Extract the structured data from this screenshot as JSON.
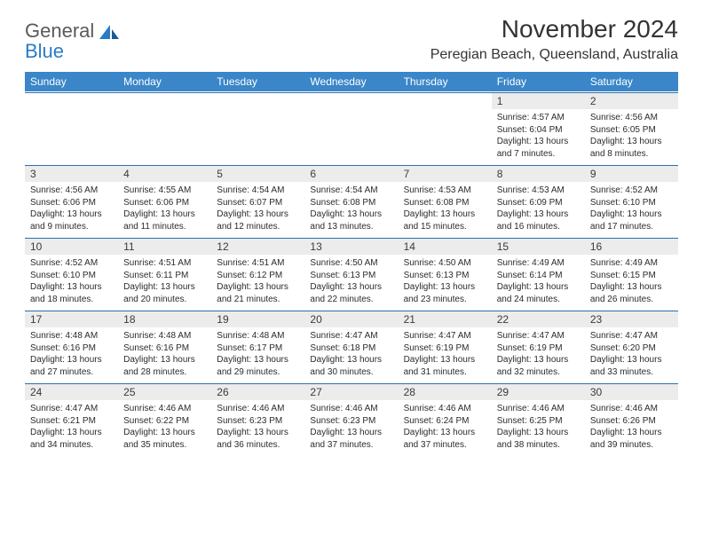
{
  "logo": {
    "word1": "General",
    "word2": "Blue"
  },
  "title": "November 2024",
  "location": "Peregian Beach, Queensland, Australia",
  "colors": {
    "header_bg": "#3a86c8",
    "header_text": "#ffffff",
    "rule": "#2f6faa",
    "daynum_bg": "#ececec",
    "body_text": "#2b2b2b",
    "logo_gray": "#5a5a5a",
    "logo_blue": "#2a7cc7"
  },
  "day_names": [
    "Sunday",
    "Monday",
    "Tuesday",
    "Wednesday",
    "Thursday",
    "Friday",
    "Saturday"
  ],
  "weeks": [
    [
      {
        "num": "",
        "lines": []
      },
      {
        "num": "",
        "lines": []
      },
      {
        "num": "",
        "lines": []
      },
      {
        "num": "",
        "lines": []
      },
      {
        "num": "",
        "lines": []
      },
      {
        "num": "1",
        "lines": [
          "Sunrise: 4:57 AM",
          "Sunset: 6:04 PM",
          "Daylight: 13 hours and 7 minutes."
        ]
      },
      {
        "num": "2",
        "lines": [
          "Sunrise: 4:56 AM",
          "Sunset: 6:05 PM",
          "Daylight: 13 hours and 8 minutes."
        ]
      }
    ],
    [
      {
        "num": "3",
        "lines": [
          "Sunrise: 4:56 AM",
          "Sunset: 6:06 PM",
          "Daylight: 13 hours and 9 minutes."
        ]
      },
      {
        "num": "4",
        "lines": [
          "Sunrise: 4:55 AM",
          "Sunset: 6:06 PM",
          "Daylight: 13 hours and 11 minutes."
        ]
      },
      {
        "num": "5",
        "lines": [
          "Sunrise: 4:54 AM",
          "Sunset: 6:07 PM",
          "Daylight: 13 hours and 12 minutes."
        ]
      },
      {
        "num": "6",
        "lines": [
          "Sunrise: 4:54 AM",
          "Sunset: 6:08 PM",
          "Daylight: 13 hours and 13 minutes."
        ]
      },
      {
        "num": "7",
        "lines": [
          "Sunrise: 4:53 AM",
          "Sunset: 6:08 PM",
          "Daylight: 13 hours and 15 minutes."
        ]
      },
      {
        "num": "8",
        "lines": [
          "Sunrise: 4:53 AM",
          "Sunset: 6:09 PM",
          "Daylight: 13 hours and 16 minutes."
        ]
      },
      {
        "num": "9",
        "lines": [
          "Sunrise: 4:52 AM",
          "Sunset: 6:10 PM",
          "Daylight: 13 hours and 17 minutes."
        ]
      }
    ],
    [
      {
        "num": "10",
        "lines": [
          "Sunrise: 4:52 AM",
          "Sunset: 6:10 PM",
          "Daylight: 13 hours and 18 minutes."
        ]
      },
      {
        "num": "11",
        "lines": [
          "Sunrise: 4:51 AM",
          "Sunset: 6:11 PM",
          "Daylight: 13 hours and 20 minutes."
        ]
      },
      {
        "num": "12",
        "lines": [
          "Sunrise: 4:51 AM",
          "Sunset: 6:12 PM",
          "Daylight: 13 hours and 21 minutes."
        ]
      },
      {
        "num": "13",
        "lines": [
          "Sunrise: 4:50 AM",
          "Sunset: 6:13 PM",
          "Daylight: 13 hours and 22 minutes."
        ]
      },
      {
        "num": "14",
        "lines": [
          "Sunrise: 4:50 AM",
          "Sunset: 6:13 PM",
          "Daylight: 13 hours and 23 minutes."
        ]
      },
      {
        "num": "15",
        "lines": [
          "Sunrise: 4:49 AM",
          "Sunset: 6:14 PM",
          "Daylight: 13 hours and 24 minutes."
        ]
      },
      {
        "num": "16",
        "lines": [
          "Sunrise: 4:49 AM",
          "Sunset: 6:15 PM",
          "Daylight: 13 hours and 26 minutes."
        ]
      }
    ],
    [
      {
        "num": "17",
        "lines": [
          "Sunrise: 4:48 AM",
          "Sunset: 6:16 PM",
          "Daylight: 13 hours and 27 minutes."
        ]
      },
      {
        "num": "18",
        "lines": [
          "Sunrise: 4:48 AM",
          "Sunset: 6:16 PM",
          "Daylight: 13 hours and 28 minutes."
        ]
      },
      {
        "num": "19",
        "lines": [
          "Sunrise: 4:48 AM",
          "Sunset: 6:17 PM",
          "Daylight: 13 hours and 29 minutes."
        ]
      },
      {
        "num": "20",
        "lines": [
          "Sunrise: 4:47 AM",
          "Sunset: 6:18 PM",
          "Daylight: 13 hours and 30 minutes."
        ]
      },
      {
        "num": "21",
        "lines": [
          "Sunrise: 4:47 AM",
          "Sunset: 6:19 PM",
          "Daylight: 13 hours and 31 minutes."
        ]
      },
      {
        "num": "22",
        "lines": [
          "Sunrise: 4:47 AM",
          "Sunset: 6:19 PM",
          "Daylight: 13 hours and 32 minutes."
        ]
      },
      {
        "num": "23",
        "lines": [
          "Sunrise: 4:47 AM",
          "Sunset: 6:20 PM",
          "Daylight: 13 hours and 33 minutes."
        ]
      }
    ],
    [
      {
        "num": "24",
        "lines": [
          "Sunrise: 4:47 AM",
          "Sunset: 6:21 PM",
          "Daylight: 13 hours and 34 minutes."
        ]
      },
      {
        "num": "25",
        "lines": [
          "Sunrise: 4:46 AM",
          "Sunset: 6:22 PM",
          "Daylight: 13 hours and 35 minutes."
        ]
      },
      {
        "num": "26",
        "lines": [
          "Sunrise: 4:46 AM",
          "Sunset: 6:23 PM",
          "Daylight: 13 hours and 36 minutes."
        ]
      },
      {
        "num": "27",
        "lines": [
          "Sunrise: 4:46 AM",
          "Sunset: 6:23 PM",
          "Daylight: 13 hours and 37 minutes."
        ]
      },
      {
        "num": "28",
        "lines": [
          "Sunrise: 4:46 AM",
          "Sunset: 6:24 PM",
          "Daylight: 13 hours and 37 minutes."
        ]
      },
      {
        "num": "29",
        "lines": [
          "Sunrise: 4:46 AM",
          "Sunset: 6:25 PM",
          "Daylight: 13 hours and 38 minutes."
        ]
      },
      {
        "num": "30",
        "lines": [
          "Sunrise: 4:46 AM",
          "Sunset: 6:26 PM",
          "Daylight: 13 hours and 39 minutes."
        ]
      }
    ]
  ]
}
